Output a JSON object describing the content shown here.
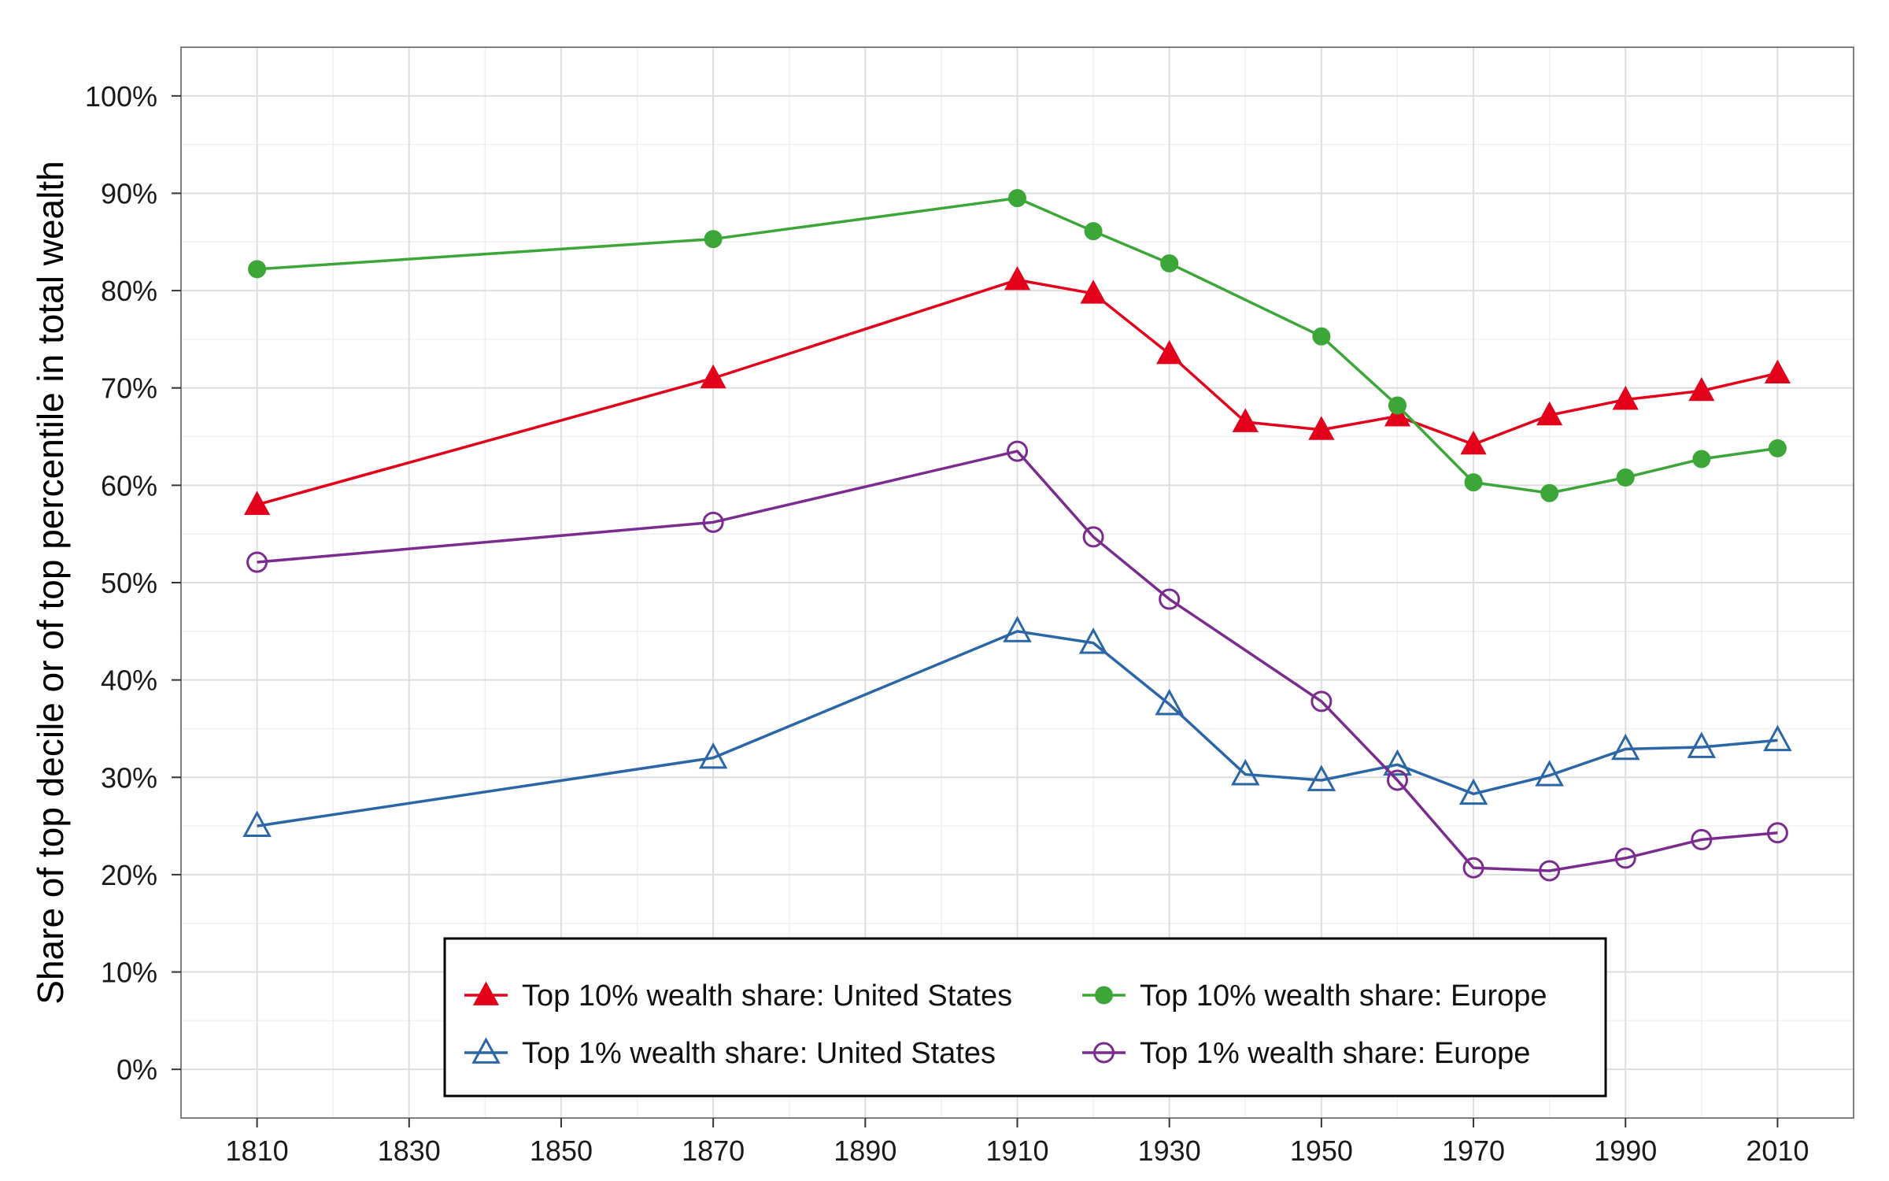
{
  "chart_data": {
    "type": "line",
    "title": "",
    "xlabel": "",
    "ylabel": "Share of top decile or of top percentile in total wealth",
    "xlim": [
      1800,
      2020
    ],
    "ylim": [
      -0.05,
      1.05
    ],
    "x_ticks": [
      1810,
      1830,
      1850,
      1870,
      1890,
      1910,
      1930,
      1950,
      1970,
      1990,
      2010
    ],
    "x_tick_labels": [
      "1810",
      "1830",
      "1850",
      "1870",
      "1890",
      "1910",
      "1930",
      "1950",
      "1970",
      "1990",
      "2010"
    ],
    "y_ticks": [
      0,
      0.1,
      0.2,
      0.3,
      0.4,
      0.5,
      0.6,
      0.7,
      0.8,
      0.9,
      1.0
    ],
    "y_tick_labels": [
      "0%",
      "10%",
      "20%",
      "30%",
      "40%",
      "50%",
      "60%",
      "70%",
      "80%",
      "90%",
      "100%"
    ],
    "grid": true,
    "legend_position": "bottom-center",
    "legend_columns": 2,
    "series": [
      {
        "name": "Top 10% wealth share: United States",
        "color": "#e3001b",
        "marker": "filled-triangle",
        "x": [
          1810,
          1870,
          1910,
          1920,
          1930,
          1940,
          1950,
          1960,
          1970,
          1980,
          1990,
          2000,
          2010
        ],
        "values": [
          0.58,
          0.71,
          0.811,
          0.797,
          0.735,
          0.665,
          0.657,
          0.671,
          0.642,
          0.672,
          0.688,
          0.697,
          0.715
        ]
      },
      {
        "name": "Top 10% wealth share: Europe",
        "color": "#3da639",
        "marker": "filled-circle",
        "x": [
          1810,
          1870,
          1910,
          1920,
          1930,
          1950,
          1960,
          1970,
          1980,
          1990,
          2000,
          2010
        ],
        "values": [
          0.822,
          0.853,
          0.895,
          0.861,
          0.828,
          0.753,
          0.682,
          0.603,
          0.592,
          0.608,
          0.627,
          0.638
        ]
      },
      {
        "name": "Top 1% wealth share: United States",
        "color": "#2b66a6",
        "marker": "open-triangle",
        "x": [
          1810,
          1870,
          1910,
          1920,
          1930,
          1940,
          1950,
          1960,
          1970,
          1980,
          1990,
          2000,
          2010
        ],
        "values": [
          0.25,
          0.32,
          0.45,
          0.438,
          0.375,
          0.303,
          0.297,
          0.313,
          0.283,
          0.302,
          0.329,
          0.331,
          0.338
        ]
      },
      {
        "name": "Top 1% wealth share: Europe",
        "color": "#7b2c8f",
        "marker": "open-circle",
        "x": [
          1810,
          1870,
          1910,
          1920,
          1930,
          1950,
          1960,
          1970,
          1980,
          1990,
          2000,
          2010
        ],
        "values": [
          0.521,
          0.562,
          0.635,
          0.547,
          0.483,
          0.378,
          0.297,
          0.207,
          0.204,
          0.217,
          0.236,
          0.243
        ]
      }
    ]
  }
}
